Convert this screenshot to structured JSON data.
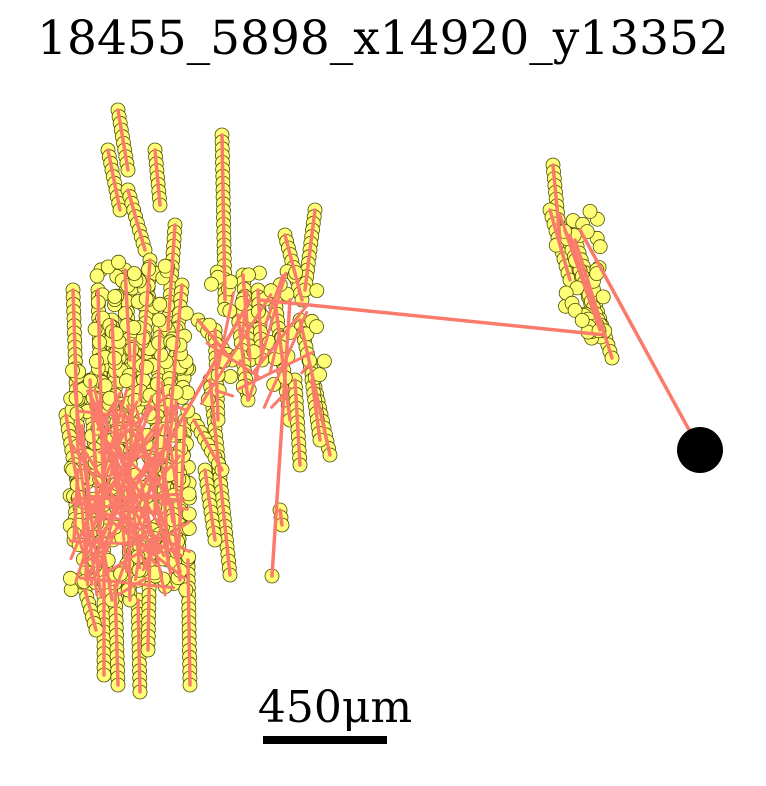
{
  "figure": {
    "title": "18455_5898_x14920_y13352",
    "scale_bar_label": "450μm"
  },
  "colors": {
    "point_fill": "#ffff77",
    "point_stroke": "#4d4d00",
    "track_line": "#fa7a6b",
    "endpoint": "#000000",
    "scale_bar": "#000000"
  }
}
